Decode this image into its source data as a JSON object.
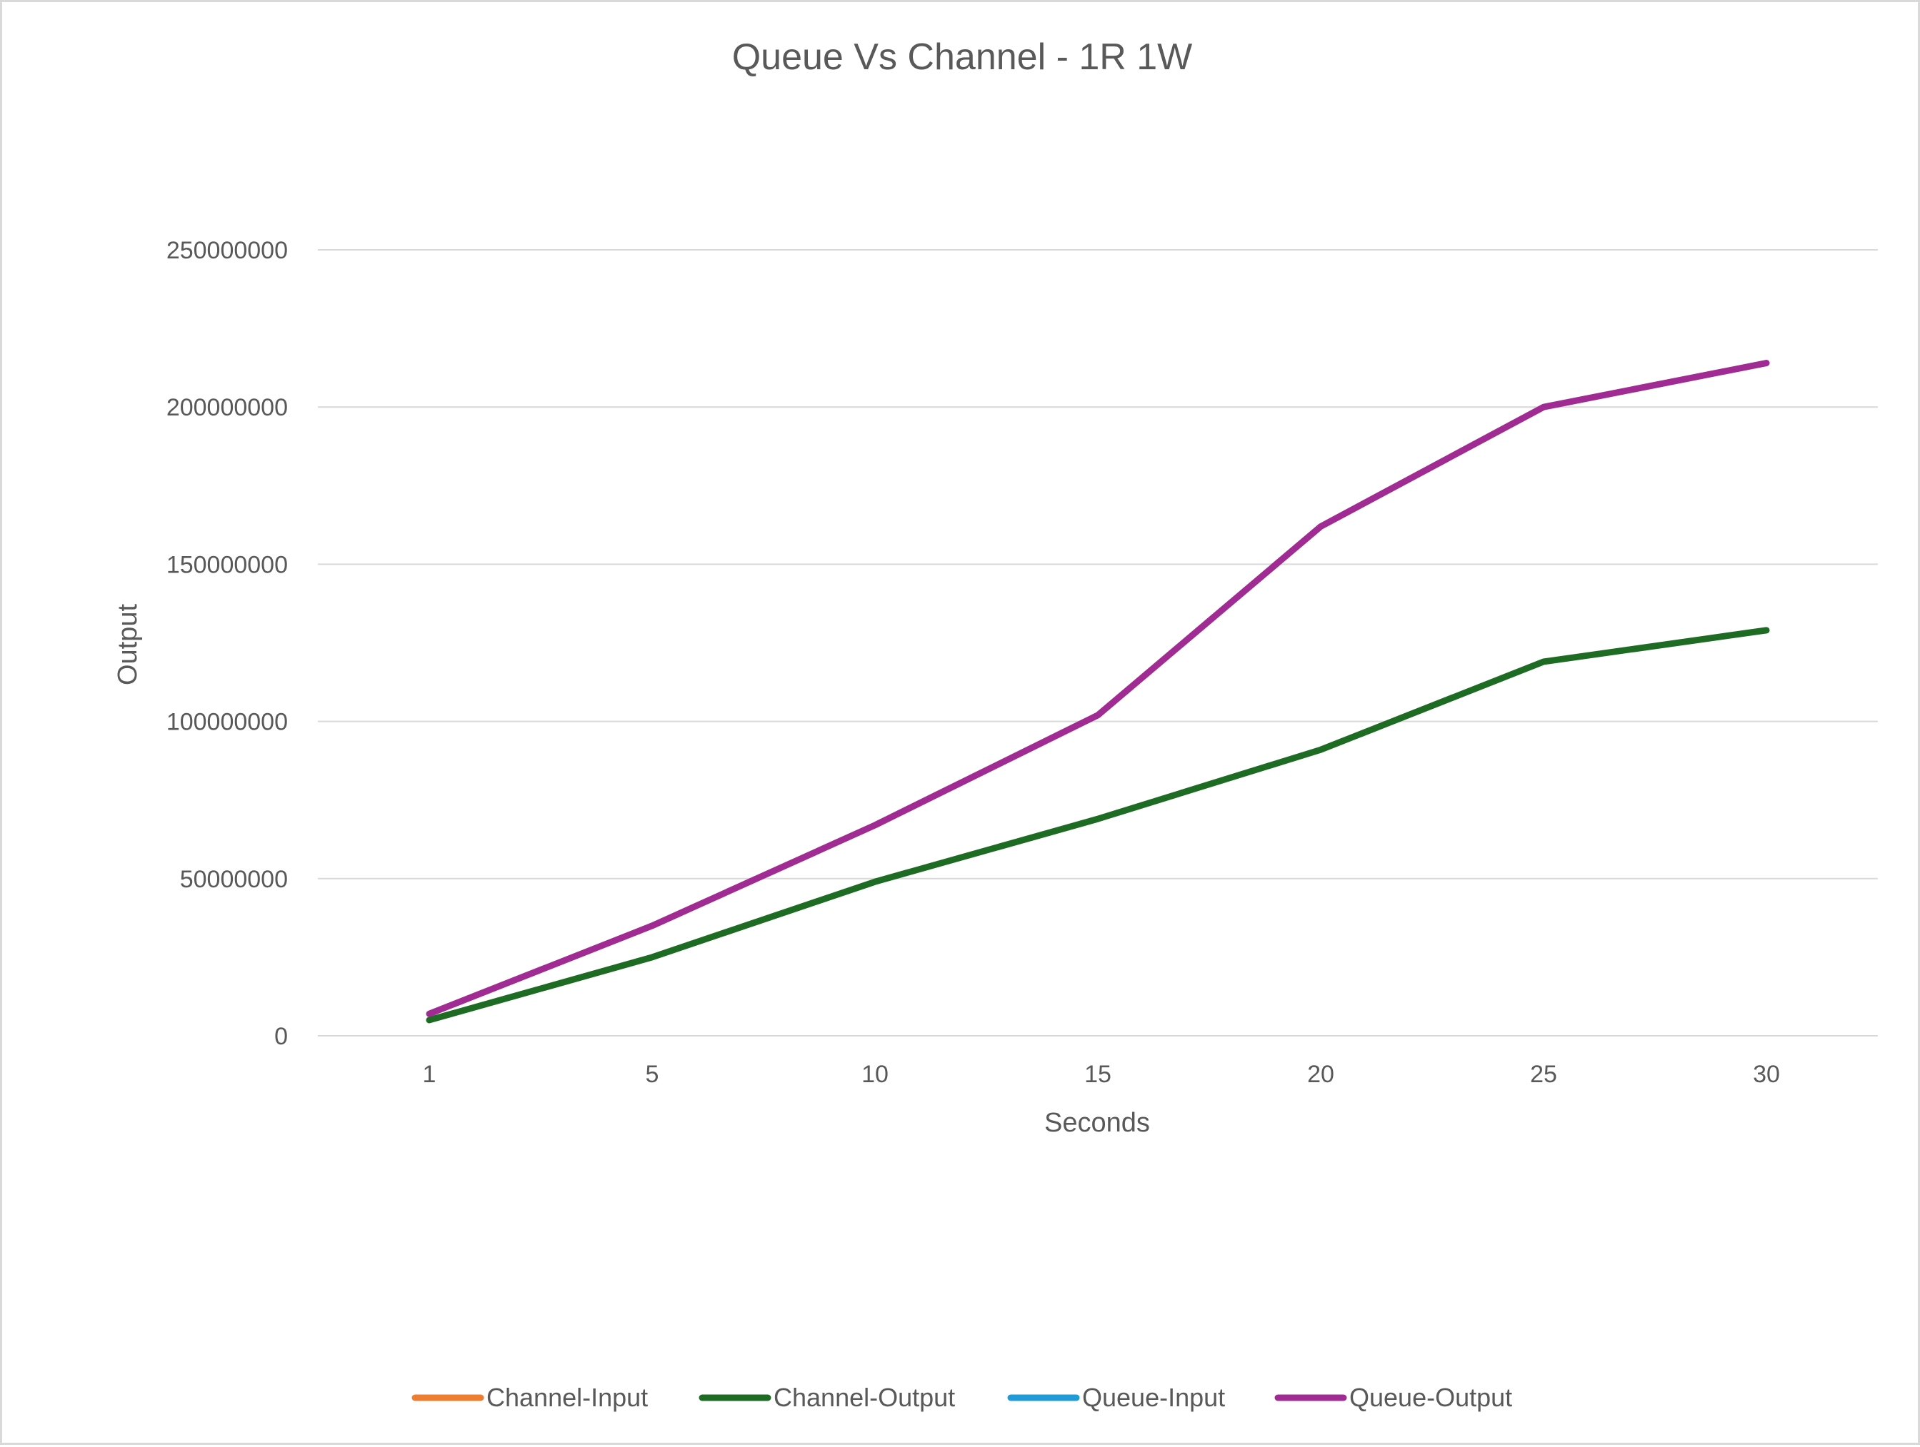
{
  "chart_data": {
    "type": "line",
    "title": "Queue Vs Channel - 1R 1W",
    "xlabel": "Seconds",
    "ylabel": "Output",
    "categories": [
      "1",
      "5",
      "10",
      "15",
      "20",
      "25",
      "30"
    ],
    "ylim": [
      0,
      250000000
    ],
    "yticks": [
      "0",
      "50000000",
      "100000000",
      "150000000",
      "200000000",
      "250000000"
    ],
    "grid": true,
    "legend_position": "bottom",
    "series": [
      {
        "name": "Channel-Input",
        "color": "#ed7d31",
        "values": [
          null,
          null,
          null,
          null,
          null,
          null,
          null
        ]
      },
      {
        "name": "Channel-Output",
        "color": "#1e6b24",
        "values": [
          5000000,
          25000000,
          49000000,
          69000000,
          91000000,
          119000000,
          129000000
        ]
      },
      {
        "name": "Queue-Input",
        "color": "#1f9bd7",
        "values": [
          null,
          null,
          null,
          null,
          null,
          null,
          null
        ]
      },
      {
        "name": "Queue-Output",
        "color": "#a02b93",
        "values": [
          7000000,
          35000000,
          67000000,
          102000000,
          162000000,
          200000000,
          214000000
        ]
      }
    ]
  }
}
